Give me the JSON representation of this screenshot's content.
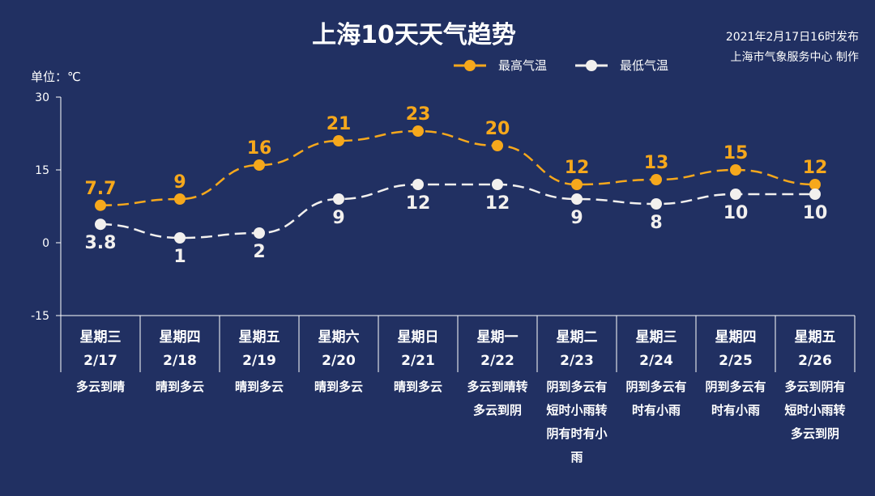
{
  "header": {
    "title": "上海10天天气趋势",
    "publish_time": "2021年2月17日16时发布",
    "publisher": "上海市气象服务中心 制作",
    "unit": "单位：℃"
  },
  "legend": [
    {
      "name": "最高气温",
      "color": "#f6a81c"
    },
    {
      "name": "最低气温",
      "color": "#f2f0ee"
    }
  ],
  "chart_data": {
    "type": "line",
    "title": "上海10天天气趋势",
    "ylabel": "单位：℃",
    "ylim": [
      -15,
      30
    ],
    "yticks": [
      "30",
      "15",
      "0",
      "-15"
    ],
    "ytick_values": [
      30,
      15,
      0,
      -15
    ],
    "categories": [
      "2/17",
      "2/18",
      "2/19",
      "2/20",
      "2/21",
      "2/22",
      "2/23",
      "2/24",
      "2/25",
      "2/26"
    ],
    "days": [
      "星期三",
      "星期四",
      "星期五",
      "星期六",
      "星期日",
      "星期一",
      "星期二",
      "星期三",
      "星期四",
      "星期五"
    ],
    "dates": [
      "2/17",
      "2/18",
      "2/19",
      "2/20",
      "2/21",
      "2/22",
      "2/23",
      "2/24",
      "2/25",
      "2/26"
    ],
    "weather": [
      [
        "多云到晴"
      ],
      [
        "晴到多云"
      ],
      [
        "晴到多云"
      ],
      [
        "晴到多云"
      ],
      [
        "晴到多云"
      ],
      [
        "多云到晴转",
        "多云到阴"
      ],
      [
        "阴到多云有",
        "短时小雨转",
        "阴有时有小",
        "雨"
      ],
      [
        "阴到多云有",
        "时有小雨"
      ],
      [
        "阴到多云有",
        "时有小雨"
      ],
      [
        "多云到阴有",
        "短时小雨转",
        "多云到阴"
      ]
    ],
    "series": [
      {
        "name": "最高气温",
        "color": "#f6a81c",
        "values": [
          7.7,
          9,
          16,
          21,
          23,
          20,
          12,
          13,
          15,
          12
        ],
        "labels": [
          "7.7",
          "9",
          "16",
          "21",
          "23",
          "20",
          "12",
          "13",
          "15",
          "12"
        ]
      },
      {
        "name": "最低气温",
        "color": "#f2f0ee",
        "values": [
          3.8,
          1,
          2,
          9,
          12,
          12,
          9,
          8,
          10,
          10
        ],
        "labels": [
          "3.8",
          "1",
          "2",
          "9",
          "12",
          "12",
          "9",
          "8",
          "10",
          "10"
        ]
      }
    ],
    "grid": false,
    "legend_position": "top-right"
  }
}
